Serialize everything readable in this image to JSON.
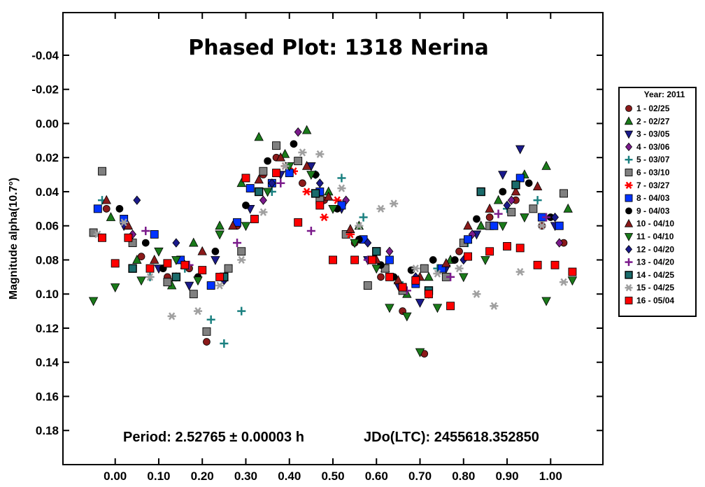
{
  "chart_data": {
    "type": "scatter",
    "title": "Phased Plot: 1318 Nerina",
    "xlabel": "",
    "ylabel": "Magnitude alpha(10.7°)",
    "xlim": [
      -0.12,
      1.12
    ],
    "ylim": [
      0.2,
      -0.065
    ],
    "y_inverted": true,
    "grid": false,
    "legend_placement": "right",
    "x_ticks": [
      "0.00",
      "0.10",
      "0.20",
      "0.30",
      "0.40",
      "0.50",
      "0.60",
      "0.70",
      "0.80",
      "0.90",
      "1.00"
    ],
    "x_tick_values": [
      0.0,
      0.1,
      0.2,
      0.3,
      0.4,
      0.5,
      0.6,
      0.7,
      0.8,
      0.9,
      1.0
    ],
    "y_ticks": [
      "-0.04",
      "-0.02",
      "0.00",
      "0.02",
      "0.04",
      "0.06",
      "0.08",
      "0.10",
      "0.12",
      "0.14",
      "0.16",
      "0.18"
    ],
    "y_tick_values": [
      -0.04,
      -0.02,
      0.0,
      0.02,
      0.04,
      0.06,
      0.08,
      0.1,
      0.12,
      0.14,
      0.16,
      0.18
    ],
    "annotations": {
      "period": "Period: 2.52765 ± 0.00003 h",
      "jdo": "JDo(LTC): 2455618.352850"
    },
    "legend_title": "Year: 2011",
    "series": [
      {
        "name": "1 - 02/25",
        "marker": "circle",
        "color": "#8b1a1a",
        "x": [
          -0.02,
          0.06,
          0.12,
          0.17,
          0.21,
          0.28,
          0.34,
          0.37,
          0.43,
          0.48,
          0.55,
          0.61,
          0.66,
          0.71,
          0.79,
          0.86,
          0.92,
          0.98,
          1.03
        ],
        "y": [
          0.05,
          0.078,
          0.09,
          0.085,
          0.128,
          0.06,
          0.03,
          0.02,
          0.035,
          0.045,
          0.07,
          0.09,
          0.11,
          0.135,
          0.075,
          0.055,
          0.045,
          0.06,
          0.07
        ]
      },
      {
        "name": "2 - 02/27",
        "marker": "triangle-up",
        "color": "#1a7a1a",
        "x": [
          -0.01,
          0.05,
          0.13,
          0.18,
          0.24,
          0.29,
          0.33,
          0.39,
          0.44,
          0.49,
          0.56,
          0.62,
          0.67,
          0.72,
          0.77,
          0.84,
          0.88,
          0.94,
          0.99,
          1.04
        ],
        "y": [
          0.055,
          0.08,
          0.095,
          0.07,
          0.06,
          0.035,
          0.008,
          0.018,
          0.004,
          0.04,
          0.06,
          0.085,
          0.1,
          0.09,
          0.08,
          0.06,
          0.045,
          0.03,
          0.025,
          0.05
        ]
      },
      {
        "name": "3 - 03/05",
        "marker": "triangle-down",
        "color": "#1a1a8b",
        "x": [
          0.02,
          0.1,
          0.17,
          0.23,
          0.31,
          0.38,
          0.45,
          0.52,
          0.58,
          0.65,
          0.7,
          0.76,
          0.83,
          0.89,
          0.93,
          1.01
        ],
        "y": [
          0.06,
          0.085,
          0.095,
          0.08,
          0.05,
          0.03,
          0.025,
          0.05,
          0.08,
          0.095,
          0.105,
          0.085,
          0.065,
          0.03,
          0.015,
          0.06
        ]
      },
      {
        "name": "4 - 03/06",
        "marker": "diamond",
        "color": "#7a1a8b",
        "x": [
          0.04,
          0.14,
          0.25,
          0.34,
          0.42,
          0.53,
          0.63,
          0.72,
          0.82,
          0.91,
          1.02
        ],
        "y": [
          0.065,
          0.09,
          0.09,
          0.045,
          0.005,
          0.045,
          0.075,
          0.1,
          0.065,
          0.045,
          0.07
        ]
      },
      {
        "name": "5 - 03/07",
        "marker": "plus",
        "color": "#1a8080",
        "x": [
          -0.03,
          0.08,
          0.16,
          0.22,
          0.25,
          0.29,
          0.36,
          0.46,
          0.52,
          0.57,
          0.66,
          0.74,
          0.81,
          0.9,
          0.97
        ],
        "y": [
          0.045,
          0.09,
          0.085,
          0.115,
          0.129,
          0.11,
          0.04,
          0.03,
          0.032,
          0.055,
          0.095,
          0.085,
          0.07,
          0.05,
          0.045
        ]
      },
      {
        "name": "6 - 03/10",
        "marker": "square",
        "color": "#808080",
        "x": [
          -0.05,
          -0.03,
          0.04,
          0.12,
          0.18,
          0.21,
          0.26,
          0.29,
          0.34,
          0.37,
          0.42,
          0.47,
          0.53,
          0.58,
          0.62,
          0.66,
          0.71,
          0.76,
          0.8,
          0.86,
          0.91,
          0.96,
          1.03
        ],
        "y": [
          0.064,
          0.028,
          0.07,
          0.093,
          0.1,
          0.122,
          0.085,
          0.075,
          0.028,
          0.013,
          0.022,
          0.045,
          0.065,
          0.095,
          0.085,
          0.098,
          0.085,
          0.09,
          0.07,
          0.06,
          0.052,
          0.05,
          0.041
        ]
      },
      {
        "name": "7 - 03/27",
        "marker": "asterisk",
        "color": "#ff0000",
        "x": [
          0.39,
          0.41,
          0.44,
          0.48,
          0.51,
          0.54
        ],
        "y": [
          0.025,
          0.028,
          0.04,
          0.055,
          0.045,
          0.065
        ]
      },
      {
        "name": "8 - 04/03",
        "marker": "square",
        "color": "#0033ff",
        "x": [
          -0.04,
          0.02,
          0.09,
          0.15,
          0.22,
          0.28,
          0.31,
          0.36,
          0.4,
          0.47,
          0.52,
          0.57,
          0.63,
          0.69,
          0.75,
          0.81,
          0.87,
          0.93,
          0.98,
          1.02
        ],
        "y": [
          0.05,
          0.056,
          0.065,
          0.08,
          0.095,
          0.058,
          0.038,
          0.035,
          0.029,
          0.04,
          0.048,
          0.068,
          0.08,
          0.094,
          0.085,
          0.068,
          0.06,
          0.032,
          0.055,
          0.06
        ]
      },
      {
        "name": "9 - 04/03",
        "marker": "circle",
        "color": "#000000",
        "x": [
          0.01,
          0.07,
          0.11,
          0.19,
          0.23,
          0.3,
          0.35,
          0.41,
          0.46,
          0.51,
          0.56,
          0.61,
          0.64,
          0.68,
          0.73,
          0.78,
          0.83,
          0.89,
          0.95,
          1.0
        ],
        "y": [
          0.05,
          0.07,
          0.085,
          0.09,
          0.075,
          0.048,
          0.022,
          0.012,
          0.03,
          0.05,
          0.068,
          0.083,
          0.09,
          0.086,
          0.08,
          0.08,
          0.056,
          0.04,
          0.035,
          0.055
        ]
      },
      {
        "name": "10 - 04/10",
        "marker": "triangle-up",
        "color": "#8b1a1a",
        "x": [
          -0.02,
          0.03,
          0.09,
          0.16,
          0.2,
          0.27,
          0.33,
          0.38,
          0.44,
          0.49,
          0.54,
          0.6,
          0.65,
          0.7,
          0.76,
          0.81,
          0.86,
          0.92,
          0.97
        ],
        "y": [
          0.045,
          0.06,
          0.08,
          0.083,
          0.075,
          0.06,
          0.033,
          0.02,
          0.025,
          0.043,
          0.062,
          0.08,
          0.092,
          0.09,
          0.082,
          0.06,
          0.05,
          0.04,
          0.037
        ]
      },
      {
        "name": "11 - 04/10",
        "marker": "triangle-down",
        "color": "#1a7a1a",
        "x": [
          -0.05,
          0.0,
          0.06,
          0.1,
          0.14,
          0.19,
          0.24,
          0.3,
          0.35,
          0.4,
          0.45,
          0.5,
          0.55,
          0.6,
          0.63,
          0.67,
          0.7,
          0.74,
          0.8,
          0.85,
          0.89,
          0.94,
          0.99,
          1.05
        ],
        "y": [
          0.104,
          0.096,
          0.092,
          0.075,
          0.08,
          0.092,
          0.065,
          0.06,
          0.04,
          0.025,
          0.03,
          0.05,
          0.07,
          0.085,
          0.108,
          0.113,
          0.134,
          0.108,
          0.09,
          0.08,
          0.06,
          0.055,
          0.104,
          0.092
        ]
      },
      {
        "name": "12 - 04/20",
        "marker": "diamond",
        "color": "#1a1a8b",
        "x": [
          0.05,
          0.14,
          0.25,
          0.36,
          0.47,
          0.58,
          0.69,
          0.8,
          0.9,
          1.01
        ],
        "y": [
          0.045,
          0.07,
          0.092,
          0.035,
          0.035,
          0.07,
          0.09,
          0.08,
          0.048,
          0.055
        ]
      },
      {
        "name": "13 - 04/20",
        "marker": "plus",
        "color": "#7a1a8b",
        "x": [
          0.07,
          0.17,
          0.28,
          0.38,
          0.45,
          0.58,
          0.67,
          0.77,
          0.88,
          0.99
        ],
        "y": [
          0.063,
          0.083,
          0.07,
          0.035,
          0.063,
          0.08,
          0.098,
          0.09,
          0.053,
          0.055
        ]
      },
      {
        "name": "14 - 04/25",
        "marker": "square-open",
        "color": "#1a6b6b",
        "x": [
          0.04,
          0.14,
          0.25,
          0.33,
          0.46,
          0.6,
          0.72,
          0.84,
          0.92
        ],
        "y": [
          0.085,
          0.09,
          0.09,
          0.04,
          0.041,
          0.075,
          0.098,
          0.04,
          0.036
        ]
      },
      {
        "name": "15 - 04/25",
        "marker": "asterisk",
        "color": "#a0a0a0",
        "x": [
          -0.04,
          0.02,
          0.08,
          0.13,
          0.19,
          0.24,
          0.29,
          0.34,
          0.39,
          0.43,
          0.47,
          0.52,
          0.56,
          0.61,
          0.64,
          0.69,
          0.74,
          0.79,
          0.83,
          0.87,
          0.93,
          0.98,
          1.03
        ],
        "y": [
          0.065,
          0.058,
          0.09,
          0.113,
          0.11,
          0.095,
          0.08,
          0.052,
          0.025,
          0.017,
          0.018,
          0.038,
          0.06,
          0.05,
          0.047,
          0.085,
          0.088,
          0.085,
          0.1,
          0.107,
          0.087,
          0.06,
          0.093
        ]
      },
      {
        "name": "16 - 05/04",
        "marker": "square",
        "color": "#ff0000",
        "x": [
          -0.03,
          0.0,
          0.03,
          0.08,
          0.12,
          0.16,
          0.2,
          0.24,
          0.3,
          0.32,
          0.37,
          0.42,
          0.47,
          0.5,
          0.55,
          0.59,
          0.63,
          0.66,
          0.69,
          0.72,
          0.77,
          0.81,
          0.86,
          0.9,
          0.93,
          0.97,
          1.01,
          1.05
        ],
        "y": [
          0.067,
          0.082,
          0.067,
          0.085,
          0.082,
          0.083,
          0.086,
          0.09,
          0.032,
          0.056,
          0.029,
          0.058,
          0.048,
          0.08,
          0.08,
          0.08,
          0.09,
          0.096,
          0.092,
          0.1,
          0.107,
          0.078,
          0.075,
          0.072,
          0.073,
          0.083,
          0.083,
          0.087
        ]
      }
    ]
  }
}
